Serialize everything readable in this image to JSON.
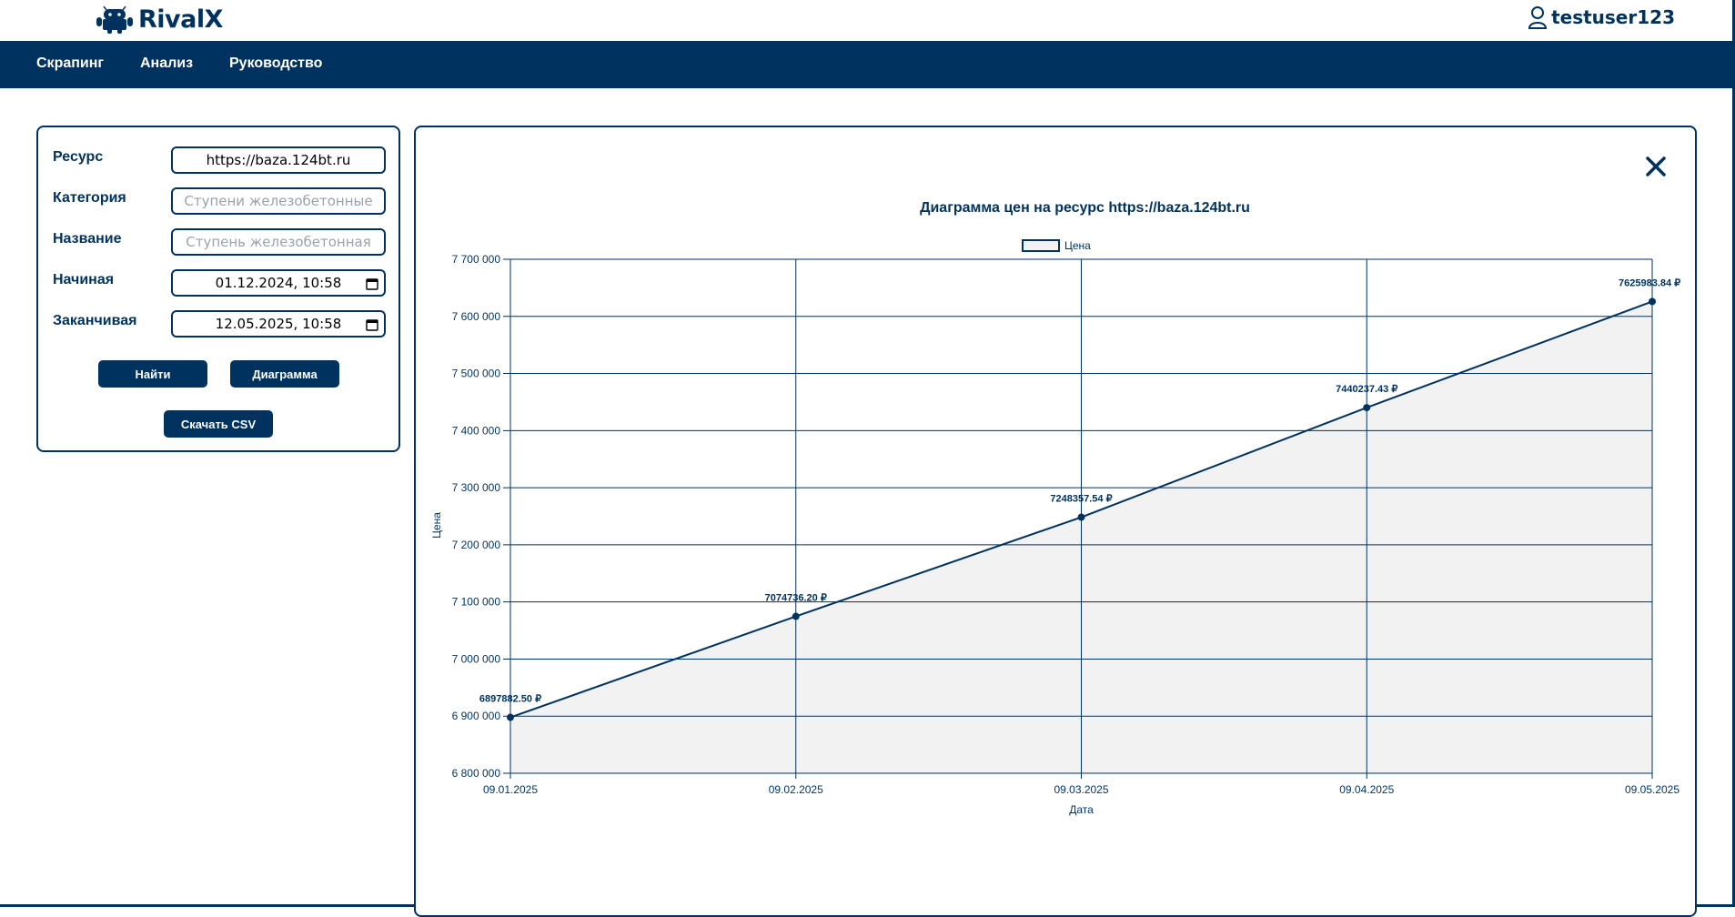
{
  "app": {
    "brand": "RivalX",
    "username": "testuser123"
  },
  "nav": {
    "items": [
      "Скрапинг",
      "Анализ",
      "Руководство"
    ]
  },
  "form": {
    "resource_label": "Ресурс",
    "resource_value": "https://baza.124bt.ru",
    "category_label": "Категория",
    "category_placeholder": "Ступени железобетонные",
    "name_label": "Название",
    "name_placeholder": "Ступень железобетонная",
    "start_label": "Начиная",
    "start_value": "01.12.2024, 10:58",
    "end_label": "Заканчивая",
    "end_value": "12.05.2025, 10:58",
    "find_button": "Найти",
    "chart_button": "Диаграмма",
    "csv_button": "Скачать CSV"
  },
  "colors": {
    "primary": "#00325f",
    "area_fill": "#f2f2f2"
  },
  "chart_data": {
    "type": "area",
    "title": "Диаграмма цен на ресурс https://baza.124bt.ru",
    "xlabel": "Дата",
    "ylabel": "Цена",
    "legend": "Цена",
    "legend_position": "top-center",
    "grid": true,
    "x": [
      "09.01.2025",
      "09.02.2025",
      "09.03.2025",
      "09.04.2025",
      "09.05.2025"
    ],
    "values": [
      6897882.5,
      7074736.2,
      7248357.54,
      7440237.43,
      7625983.84
    ],
    "data_labels": [
      "6897882.50 ₽",
      "7074736.20 ₽",
      "7248357.54 ₽",
      "7440237.43 ₽",
      "7625983.84 ₽"
    ],
    "ylim": [
      6800000,
      7700000
    ],
    "yticks": [
      6800000,
      6900000,
      7000000,
      7100000,
      7200000,
      7300000,
      7400000,
      7500000,
      7600000,
      7700000
    ],
    "ytick_labels": [
      "6 800 000",
      "6 900 000",
      "7 000 000",
      "7 100 000",
      "7 200 000",
      "7 300 000",
      "7 400 000",
      "7 500 000",
      "7 600 000",
      "7 700 000"
    ]
  }
}
